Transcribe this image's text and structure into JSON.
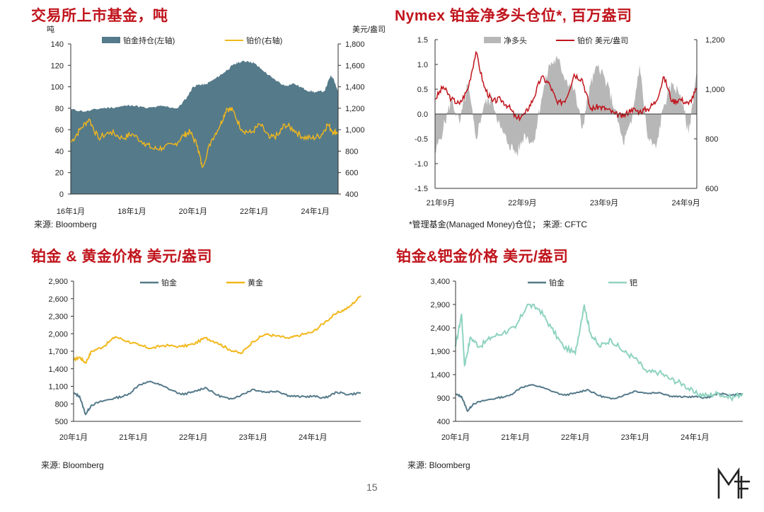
{
  "page": {
    "number": "15",
    "logo": "MF"
  },
  "colors": {
    "title_red": "#c0141c",
    "holdings": "#557a8a",
    "gold": "#f2b81c",
    "red": "#c0141c",
    "gray": "#b7b7b7",
    "platinum": "#557a8a",
    "palladium": "#8fd3c0"
  },
  "panels": {
    "p1": {
      "title": "交易所上市基金，吨",
      "source": "来源: Bloomberg"
    },
    "p2": {
      "title": "Nymex 铂金净多头仓位*, 百万盎司",
      "source": "*管理基金(Managed Money)仓位；  来源: CFTC"
    },
    "p3": {
      "title": "铂金 & 黄金价格 美元/盎司",
      "source": "来源: Bloomberg"
    },
    "p4": {
      "title": "铂金&钯金价格 美元/盎司",
      "source": "来源: Bloomberg"
    }
  },
  "chart_data": [
    {
      "id": "p1",
      "type": "area",
      "left_unit": "吨",
      "right_unit": "美元/盎司",
      "left_ylim": [
        0,
        140
      ],
      "left_ticks": [
        "0",
        "20",
        "40",
        "60",
        "80",
        "100",
        "120",
        "140"
      ],
      "right_ylim": [
        400,
        1800
      ],
      "right_ticks": [
        "400",
        "600",
        "800",
        "1,000",
        "1,200",
        "1,400",
        "1,600",
        "1,800"
      ],
      "xlim": [
        2016.0,
        2024.75
      ],
      "x_ticks": [
        {
          "x": 2016,
          "label": "16年1月"
        },
        {
          "x": 2018,
          "label": "18年1月"
        },
        {
          "x": 2020,
          "label": "20年1月"
        },
        {
          "x": 2022,
          "label": "22年1月"
        },
        {
          "x": 2024,
          "label": "24年1月"
        }
      ],
      "series": [
        {
          "name": "铂金持仓(左轴)",
          "kind": "area",
          "axis": "left",
          "x": [
            2016.0,
            2016.5,
            2017.0,
            2017.5,
            2018.0,
            2018.5,
            2019.0,
            2019.5,
            2019.8,
            2020.0,
            2020.2,
            2020.4,
            2020.7,
            2021.0,
            2021.3,
            2021.5,
            2021.8,
            2022.0,
            2022.3,
            2022.6,
            2023.0,
            2023.3,
            2023.7,
            2024.0,
            2024.3,
            2024.5,
            2024.6,
            2024.75
          ],
          "values": [
            79,
            77,
            80,
            81,
            83,
            80,
            82,
            80,
            90,
            100,
            102,
            102,
            107,
            113,
            120,
            123,
            124,
            122,
            115,
            108,
            101,
            103,
            97,
            95,
            96,
            110,
            108,
            95
          ]
        },
        {
          "name": "铂价(右轴)",
          "kind": "line",
          "axis": "right",
          "x": [
            2016.0,
            2016.3,
            2016.6,
            2016.9,
            2017.3,
            2017.7,
            2018.0,
            2018.4,
            2018.7,
            2019.0,
            2019.4,
            2019.7,
            2019.9,
            2020.15,
            2020.3,
            2020.6,
            2020.9,
            2021.1,
            2021.3,
            2021.6,
            2021.9,
            2022.2,
            2022.5,
            2022.8,
            2023.0,
            2023.3,
            2023.6,
            2023.9,
            2024.2,
            2024.4,
            2024.6,
            2024.75
          ],
          "values": [
            880,
            1000,
            1100,
            920,
            980,
            920,
            960,
            880,
            820,
            830,
            860,
            950,
            980,
            850,
            650,
            900,
            1050,
            1200,
            1180,
            1000,
            970,
            1050,
            920,
            950,
            1050,
            1000,
            930,
            920,
            950,
            1050,
            980,
            980
          ]
        }
      ]
    },
    {
      "id": "p2",
      "type": "area",
      "left_ylim": [
        -1.5,
        1.5
      ],
      "left_ticks": [
        "-1.5",
        "-1.0",
        "-0.5",
        "0.0",
        "0.5",
        "1.0",
        "1.5"
      ],
      "right_ylim": [
        600,
        1200
      ],
      "right_ticks": [
        "600",
        "800",
        "1,000",
        "1,200"
      ],
      "xlim": [
        2021.6,
        2024.8
      ],
      "x_ticks": [
        {
          "x": 2021.667,
          "label": "21年9月"
        },
        {
          "x": 2022.667,
          "label": "22年9月"
        },
        {
          "x": 2023.667,
          "label": "23年9月"
        },
        {
          "x": 2024.667,
          "label": "24年9月"
        }
      ],
      "series": [
        {
          "name": "净多头",
          "kind": "area",
          "axis": "left",
          "x": [
            2021.6,
            2021.7,
            2021.8,
            2021.9,
            2022.0,
            2022.1,
            2022.2,
            2022.3,
            2022.4,
            2022.5,
            2022.6,
            2022.7,
            2022.8,
            2022.9,
            2023.0,
            2023.1,
            2023.2,
            2023.3,
            2023.4,
            2023.5,
            2023.6,
            2023.7,
            2023.8,
            2023.9,
            2024.0,
            2024.1,
            2024.2,
            2024.3,
            2024.4,
            2024.5,
            2024.6,
            2024.7,
            2024.8
          ],
          "values": [
            -0.8,
            -0.3,
            0.3,
            -0.2,
            0.6,
            -0.5,
            0.2,
            0.3,
            -0.3,
            -0.6,
            -0.8,
            -0.4,
            -0.6,
            0.3,
            1.0,
            1.1,
            0.7,
            0.5,
            -0.3,
            0.6,
            1.0,
            0.6,
            0.1,
            -0.6,
            -0.2,
            1.0,
            -0.5,
            -0.7,
            0.2,
            0.6,
            0.4,
            -0.4,
            0.9
          ]
        },
        {
          "name": "铂价 美元/盎司",
          "kind": "line",
          "axis": "right",
          "x": [
            2021.6,
            2021.7,
            2021.8,
            2021.9,
            2022.0,
            2022.1,
            2022.2,
            2022.3,
            2022.4,
            2022.5,
            2022.6,
            2022.7,
            2022.8,
            2022.9,
            2023.0,
            2023.1,
            2023.2,
            2023.3,
            2023.4,
            2023.5,
            2023.6,
            2023.7,
            2023.8,
            2023.9,
            2024.0,
            2024.1,
            2024.2,
            2024.3,
            2024.4,
            2024.5,
            2024.6,
            2024.7,
            2024.8
          ],
          "values": [
            960,
            1010,
            960,
            940,
            1000,
            1150,
            1010,
            950,
            960,
            930,
            880,
            900,
            960,
            1050,
            1020,
            940,
            960,
            1060,
            1040,
            920,
            930,
            920,
            900,
            890,
            920,
            910,
            920,
            950,
            1050,
            950,
            960,
            940,
            1000
          ]
        }
      ]
    },
    {
      "id": "p3",
      "type": "line",
      "ylim": [
        500,
        2900
      ],
      "y_ticks": [
        "500",
        "800",
        "1,100",
        "1,400",
        "1,700",
        "2,000",
        "2,300",
        "2,600",
        "2,900"
      ],
      "xlim": [
        2020.0,
        2024.8
      ],
      "x_ticks": [
        {
          "x": 2020,
          "label": "20年1月"
        },
        {
          "x": 2021,
          "label": "21年1月"
        },
        {
          "x": 2022,
          "label": "22年1月"
        },
        {
          "x": 2023,
          "label": "23年1月"
        },
        {
          "x": 2024,
          "label": "24年1月"
        }
      ],
      "series": [
        {
          "name": "铂金",
          "x": [
            2020.0,
            2020.1,
            2020.2,
            2020.3,
            2020.5,
            2020.7,
            2020.9,
            2021.1,
            2021.3,
            2021.5,
            2021.8,
            2022.0,
            2022.2,
            2022.4,
            2022.6,
            2022.8,
            2023.0,
            2023.2,
            2023.4,
            2023.6,
            2023.8,
            2024.0,
            2024.2,
            2024.4,
            2024.6,
            2024.8
          ],
          "values": [
            980,
            930,
            620,
            780,
            850,
            900,
            950,
            1130,
            1180,
            1100,
            960,
            1000,
            1080,
            950,
            880,
            950,
            1050,
            1000,
            1020,
            940,
            920,
            930,
            900,
            1000,
            960,
            990
          ]
        },
        {
          "name": "黄金",
          "x": [
            2020.0,
            2020.1,
            2020.2,
            2020.3,
            2020.5,
            2020.7,
            2020.9,
            2021.1,
            2021.3,
            2021.5,
            2021.8,
            2022.0,
            2022.2,
            2022.4,
            2022.6,
            2022.8,
            2023.0,
            2023.2,
            2023.4,
            2023.6,
            2023.8,
            2024.0,
            2024.2,
            2024.4,
            2024.6,
            2024.8
          ],
          "values": [
            1550,
            1600,
            1500,
            1700,
            1780,
            1950,
            1870,
            1800,
            1750,
            1800,
            1780,
            1820,
            1930,
            1850,
            1730,
            1660,
            1870,
            1990,
            1960,
            1920,
            1980,
            2030,
            2200,
            2350,
            2450,
            2650
          ]
        }
      ]
    },
    {
      "id": "p4",
      "type": "line",
      "ylim": [
        400,
        3400
      ],
      "y_ticks": [
        "400",
        "900",
        "1,400",
        "1,900",
        "2,400",
        "2,900",
        "3,400"
      ],
      "xlim": [
        2020.0,
        2024.8
      ],
      "x_ticks": [
        {
          "x": 2020,
          "label": "20年1月"
        },
        {
          "x": 2021,
          "label": "21年1月"
        },
        {
          "x": 2022,
          "label": "22年1月"
        },
        {
          "x": 2023,
          "label": "23年1月"
        },
        {
          "x": 2024,
          "label": "24年1月"
        }
      ],
      "series": [
        {
          "name": "铂金",
          "x": [
            2020.0,
            2020.1,
            2020.2,
            2020.3,
            2020.5,
            2020.7,
            2020.9,
            2021.1,
            2021.3,
            2021.5,
            2021.8,
            2022.0,
            2022.2,
            2022.4,
            2022.6,
            2022.8,
            2023.0,
            2023.2,
            2023.4,
            2023.6,
            2023.8,
            2024.0,
            2024.2,
            2024.4,
            2024.6,
            2024.8
          ],
          "values": [
            980,
            930,
            620,
            780,
            850,
            900,
            950,
            1130,
            1180,
            1100,
            960,
            1000,
            1080,
            950,
            880,
            950,
            1050,
            1000,
            1020,
            940,
            920,
            930,
            900,
            1000,
            960,
            990
          ]
        },
        {
          "name": "钯",
          "x": [
            2020.0,
            2020.1,
            2020.15,
            2020.25,
            2020.4,
            2020.6,
            2020.8,
            2021.0,
            2021.2,
            2021.4,
            2021.6,
            2021.8,
            2022.0,
            2022.15,
            2022.25,
            2022.4,
            2022.6,
            2022.8,
            2023.0,
            2023.2,
            2023.4,
            2023.6,
            2023.8,
            2024.0,
            2024.2,
            2024.4,
            2024.6,
            2024.8
          ],
          "values": [
            2000,
            2700,
            1600,
            2200,
            2000,
            2200,
            2300,
            2400,
            2900,
            2800,
            2400,
            2000,
            1850,
            2900,
            2300,
            2000,
            2150,
            1900,
            1750,
            1450,
            1450,
            1300,
            1200,
            1000,
            950,
            1000,
            900,
            1000
          ]
        }
      ]
    }
  ]
}
